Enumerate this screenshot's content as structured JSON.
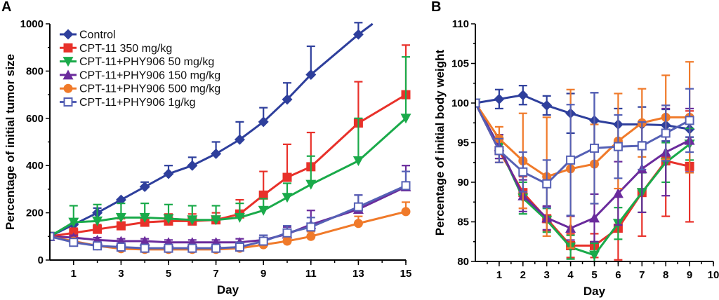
{
  "chart_data": [
    {
      "panel_label": "A",
      "type": "line",
      "xlabel": "Day",
      "ylabel": "Percentage of initial tumor size",
      "xlim": [
        0,
        15
      ],
      "ylim": [
        0,
        1000
      ],
      "xticks": [
        1,
        3,
        5,
        7,
        9,
        11,
        13,
        15
      ],
      "yticks": [
        0,
        200,
        400,
        600,
        800,
        1000
      ],
      "grid": false,
      "legend_position": "top-left",
      "error_bars": "upper",
      "series": [
        {
          "name": "Control",
          "color": "#2e3f9c",
          "marker": "diamond",
          "x": [
            0,
            1,
            2,
            3,
            4,
            5,
            6,
            7,
            8,
            9,
            10,
            11,
            13,
            13.6
          ],
          "y": [
            100,
            150,
            200,
            255,
            310,
            365,
            400,
            450,
            510,
            585,
            680,
            785,
            955,
            1000
          ],
          "err": [
            0,
            0,
            20,
            0,
            20,
            35,
            35,
            50,
            75,
            60,
            70,
            120,
            50,
            0
          ]
        },
        {
          "name": "CPT-11 350 mg/kg",
          "color": "#e8312a",
          "marker": "square",
          "x": [
            0,
            1,
            2,
            3,
            4,
            5,
            6,
            7,
            8,
            9,
            10,
            11,
            13,
            15
          ],
          "y": [
            100,
            115,
            130,
            145,
            160,
            165,
            165,
            170,
            195,
            275,
            350,
            395,
            580,
            700
          ],
          "err": [
            0,
            20,
            20,
            30,
            30,
            30,
            30,
            30,
            60,
            100,
            140,
            145,
            175,
            210
          ]
        },
        {
          "name": "CPT-11+PHY906 50 mg/kg",
          "color": "#1aaa4a",
          "marker": "triangle-down",
          "x": [
            0,
            1,
            2,
            3,
            4,
            5,
            6,
            7,
            8,
            9,
            10,
            11,
            13,
            15
          ],
          "y": [
            100,
            160,
            165,
            180,
            180,
            175,
            170,
            170,
            180,
            210,
            265,
            320,
            420,
            600
          ],
          "err": [
            0,
            70,
            70,
            60,
            60,
            60,
            60,
            60,
            60,
            50,
            60,
            120,
            180,
            260
          ]
        },
        {
          "name": "CPT-11+PHY906 150 mg/kg",
          "color": "#6a2b9c",
          "marker": "triangle-up",
          "x": [
            0,
            1,
            2,
            3,
            4,
            5,
            6,
            7,
            8,
            9,
            10,
            11,
            13,
            15
          ],
          "y": [
            100,
            95,
            85,
            80,
            80,
            75,
            75,
            75,
            75,
            85,
            110,
            150,
            215,
            310
          ],
          "err": [
            0,
            10,
            10,
            10,
            10,
            10,
            10,
            10,
            15,
            20,
            30,
            60,
            60,
            90
          ]
        },
        {
          "name": "CPT-11+PHY906 500 mg/kg",
          "color": "#f07a2a",
          "marker": "circle",
          "x": [
            0,
            1,
            2,
            3,
            4,
            5,
            6,
            7,
            8,
            9,
            10,
            11,
            13,
            15
          ],
          "y": [
            100,
            80,
            60,
            48,
            45,
            45,
            45,
            45,
            50,
            65,
            80,
            100,
            155,
            205
          ],
          "err": [
            0,
            10,
            10,
            10,
            10,
            10,
            10,
            10,
            10,
            10,
            15,
            20,
            30,
            40
          ]
        },
        {
          "name": "CPT-11+PHY906 1g/kg",
          "color": "#5560b5",
          "marker": "square-open",
          "x": [
            0,
            1,
            2,
            3,
            4,
            5,
            6,
            7,
            8,
            9,
            10,
            11,
            13,
            15
          ],
          "y": [
            100,
            75,
            60,
            55,
            50,
            50,
            50,
            50,
            55,
            80,
            115,
            140,
            225,
            315
          ],
          "err": [
            0,
            15,
            10,
            10,
            10,
            10,
            10,
            10,
            20,
            25,
            30,
            40,
            50,
            60
          ]
        }
      ]
    },
    {
      "panel_label": "B",
      "type": "line",
      "xlabel": "Day",
      "ylabel": "Percentage of initial  body weight",
      "xlim": [
        0,
        10
      ],
      "ylim": [
        80,
        110
      ],
      "xticks": [
        1,
        2,
        3,
        4,
        5,
        6,
        7,
        8,
        9,
        10
      ],
      "yticks": [
        80,
        85,
        90,
        95,
        100,
        105,
        110
      ],
      "grid": false,
      "error_bars": "both",
      "series": [
        {
          "color": "#2e3f9c",
          "marker": "diamond",
          "x": [
            0,
            1,
            2,
            3,
            4,
            5,
            6,
            7,
            8,
            9
          ],
          "y": [
            100,
            100.5,
            101,
            99.7,
            98.7,
            97.8,
            97.3,
            97.3,
            97.2,
            96.7
          ],
          "err": [
            0,
            1.2,
            1.2,
            1.2,
            2.5,
            3.5,
            2,
            2.2,
            2,
            1
          ]
        },
        {
          "color": "#e8312a",
          "marker": "square",
          "x": [
            0,
            1,
            2,
            3,
            4,
            5,
            6,
            7,
            8,
            9
          ],
          "y": [
            100,
            94,
            88.7,
            85.4,
            82,
            82,
            84.2,
            88.7,
            92.7,
            92
          ],
          "err": [
            0,
            1.5,
            2,
            1.5,
            1.5,
            1.5,
            4,
            5.5,
            7,
            7
          ]
        },
        {
          "color": "#1aaa4a",
          "marker": "triangle-down",
          "x": [
            0,
            1,
            2,
            3,
            4,
            5,
            6,
            7,
            8,
            9
          ],
          "y": [
            100,
            94.5,
            88,
            85.2,
            81.8,
            80.8,
            84.8,
            88.7,
            92.5,
            94.8
          ],
          "err": [
            0,
            1.5,
            2,
            1.5,
            1.5,
            1.5,
            2,
            2.5,
            2.5,
            2
          ]
        },
        {
          "color": "#6a2b9c",
          "marker": "triangle-up",
          "x": [
            0,
            1,
            2,
            3,
            4,
            5,
            6,
            7,
            8,
            9
          ],
          "y": [
            100,
            94.5,
            88.3,
            85.5,
            84.2,
            85.5,
            88.6,
            91.7,
            93.8,
            95.3
          ],
          "err": [
            0,
            1.5,
            2,
            1.5,
            1.5,
            3,
            4,
            5.5,
            5.5,
            4
          ]
        },
        {
          "color": "#f07a2a",
          "marker": "circle",
          "x": [
            0,
            1,
            2,
            3,
            4,
            5,
            6,
            7,
            8,
            9
          ],
          "y": [
            100,
            95.5,
            92.7,
            90.7,
            91.7,
            92.3,
            95.2,
            97.5,
            98.2,
            98.2
          ],
          "err": [
            0,
            1.5,
            6,
            7.5,
            10,
            5,
            6,
            4.3,
            5.3,
            7
          ]
        },
        {
          "color": "#5560b5",
          "marker": "square-open",
          "x": [
            0,
            1,
            2,
            3,
            4,
            5,
            6,
            7,
            8,
            9
          ],
          "y": [
            100,
            94,
            91.3,
            89.8,
            92.8,
            94.3,
            94.5,
            94.6,
            96.2,
            97.8
          ],
          "err": [
            0,
            1.5,
            2.5,
            3,
            7,
            7,
            4,
            3,
            3.5,
            4
          ]
        }
      ]
    }
  ]
}
